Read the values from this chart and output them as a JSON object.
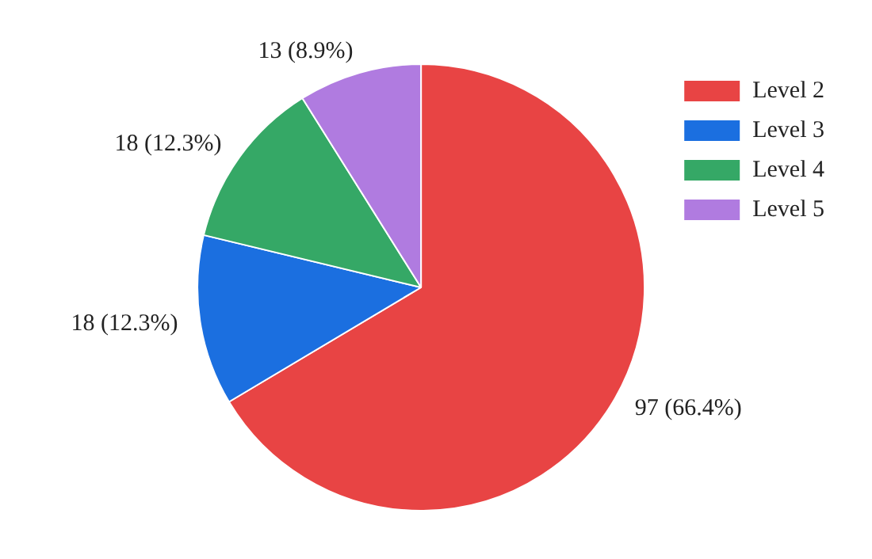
{
  "chart_data": {
    "type": "pie",
    "categories": [
      "Level 2",
      "Level 3",
      "Level 4",
      "Level 5"
    ],
    "values": [
      97,
      18,
      18,
      13
    ],
    "colors": [
      "#e84444",
      "#1b6fe0",
      "#35a866",
      "#b07be0"
    ],
    "value_labels": [
      "97 (66.4%)",
      "18 (12.3%)",
      "18 (12.3%)",
      "13 (8.9%)"
    ],
    "legend": "top right"
  }
}
